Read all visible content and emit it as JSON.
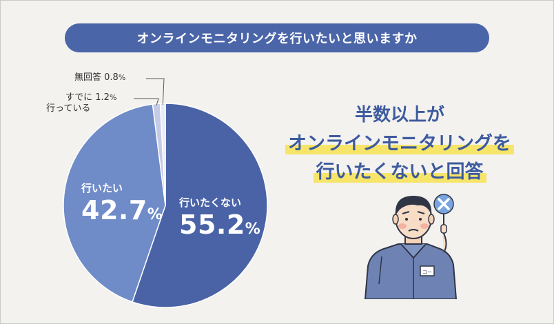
{
  "title": "オンラインモニタリングを行いたいと思いますか",
  "chart_data": {
    "type": "pie",
    "categories": [
      "行いたくない",
      "行いたい",
      "すでに行っている",
      "無回答"
    ],
    "values": [
      55.2,
      42.7,
      1.2,
      0.8
    ],
    "unit": "%",
    "colors": [
      "#4a63a6",
      "#6f8bc8",
      "#c3cbe6",
      "#e9ecf5"
    ],
    "labels": {
      "no": {
        "name": "行いたくない",
        "value": "55.2",
        "unit": "%"
      },
      "yes": {
        "name": "行いたい",
        "value": "42.7",
        "unit": "%"
      },
      "already": {
        "name_line1": "すでに",
        "name_line2": "行っている",
        "value": "1.2",
        "unit": "%"
      },
      "noanswer": {
        "name": "無回答",
        "value": "0.8",
        "unit": "%"
      }
    }
  },
  "headline": {
    "line1": "半数以上が",
    "line2": "オンラインモニタリングを",
    "line3": "行いたくないと回答"
  },
  "illustration": {
    "badge_text": "コー",
    "sign_icon": "cross-icon"
  },
  "colors": {
    "title_bg": "#4a65a8",
    "headline_text": "#3d5a9e",
    "highlight": "#f7e56a",
    "background": "#f3f2ef"
  }
}
